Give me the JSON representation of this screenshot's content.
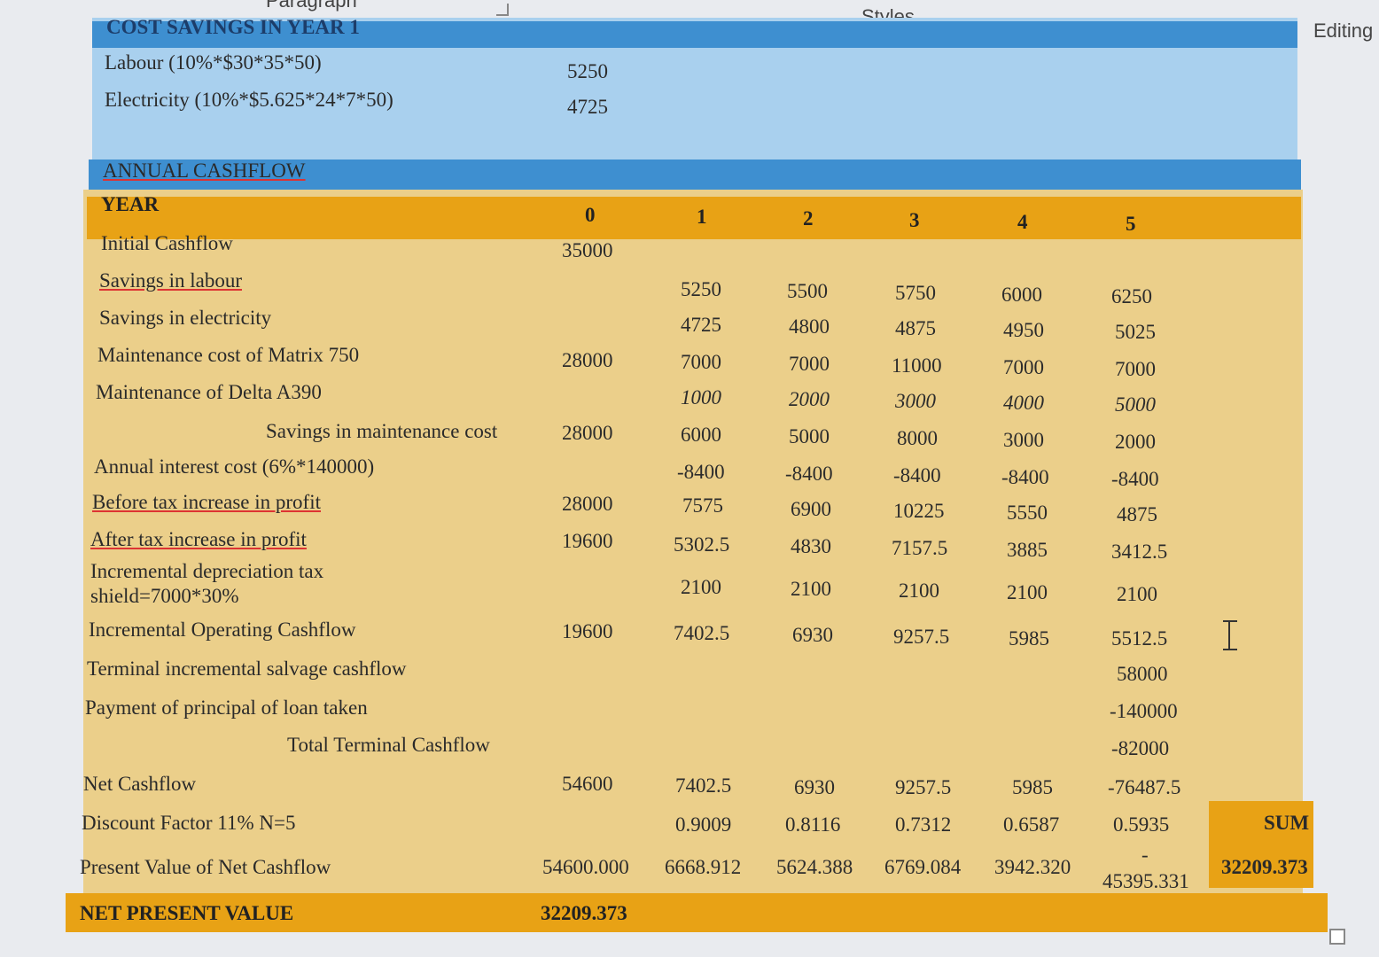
{
  "ribbon": {
    "paragraph": "Paragraph",
    "styles": "Styles",
    "editing": "Editing"
  },
  "cost_savings": {
    "header": "COST SAVINGS IN YEAR 1",
    "rows": [
      {
        "label": "Labour (10%*$30*35*50)",
        "value": "5250"
      },
      {
        "label": "Electricity (10%*$5.625*24*7*50)",
        "value": "4725"
      }
    ]
  },
  "annual": {
    "header": "ANNUAL CASHFLOW",
    "year_label": "YEAR",
    "years": [
      "0",
      "1",
      "2",
      "3",
      "4",
      "5"
    ],
    "rows": [
      {
        "label": "Initial Cashflow",
        "cells": [
          "35000",
          "",
          "",
          "",
          "",
          ""
        ]
      },
      {
        "label": "Savings in labour",
        "cells": [
          "",
          "5250",
          "5500",
          "5750",
          "6000",
          "6250"
        ]
      },
      {
        "label": "Savings in electricity",
        "cells": [
          "",
          "4725",
          "4800",
          "4875",
          "4950",
          "5025"
        ]
      },
      {
        "label": "Maintenance cost of Matrix 750",
        "cells": [
          "28000",
          "7000",
          "7000",
          "11000",
          "7000",
          "7000"
        ]
      },
      {
        "label": "Maintenance of Delta A390",
        "cells": [
          "",
          "1000",
          "2000",
          "3000",
          "4000",
          "5000"
        ]
      },
      {
        "label": "Savings in maintenance cost",
        "cells": [
          "28000",
          "6000",
          "5000",
          "8000",
          "3000",
          "2000"
        ]
      },
      {
        "label": "Annual interest cost (6%*140000)",
        "cells": [
          "",
          "-8400",
          "-8400",
          "-8400",
          "-8400",
          "-8400"
        ]
      },
      {
        "label": "Before tax increase in profit",
        "cells": [
          "28000",
          "7575",
          "6900",
          "10225",
          "5550",
          "4875"
        ]
      },
      {
        "label": "After tax increase in profit",
        "cells": [
          "19600",
          "5302.5",
          "4830",
          "7157.5",
          "3885",
          "3412.5"
        ]
      },
      {
        "label": "Incremental depreciation tax",
        "label2": "shield=7000*30%",
        "cells": [
          "",
          "2100",
          "2100",
          "2100",
          "2100",
          "2100"
        ]
      },
      {
        "label": "Incremental Operating Cashflow",
        "cells": [
          "19600",
          "7402.5",
          "6930",
          "9257.5",
          "5985",
          "5512.5"
        ]
      },
      {
        "label": "Terminal incremental salvage cashflow",
        "cells": [
          "",
          "",
          "",
          "",
          "",
          "58000"
        ]
      },
      {
        "label": "Payment of principal of loan taken",
        "cells": [
          "",
          "",
          "",
          "",
          "",
          "-140000"
        ]
      },
      {
        "label": "Total Terminal Cashflow",
        "cells": [
          "",
          "",
          "",
          "",
          "",
          "-82000"
        ]
      },
      {
        "label": "Net Cashflow",
        "cells": [
          "54600",
          "7402.5",
          "6930",
          "9257.5",
          "5985",
          "-76487.5"
        ]
      },
      {
        "label": "Discount Factor 11% N=5",
        "cells": [
          "",
          "0.9009",
          "0.8116",
          "0.7312",
          "0.6587",
          "0.5935"
        ]
      },
      {
        "label": "Present Value of Net Cashflow",
        "cells": [
          "54600.000",
          "6668.912",
          "5624.388",
          "6769.084",
          "3942.320",
          "45395.331"
        ]
      }
    ],
    "pv_year5_dash": "-",
    "sum_label": "SUM",
    "sum_value": "32209.373",
    "npv_label": "NET PRESENT VALUE",
    "npv_value": "32209.373"
  }
}
